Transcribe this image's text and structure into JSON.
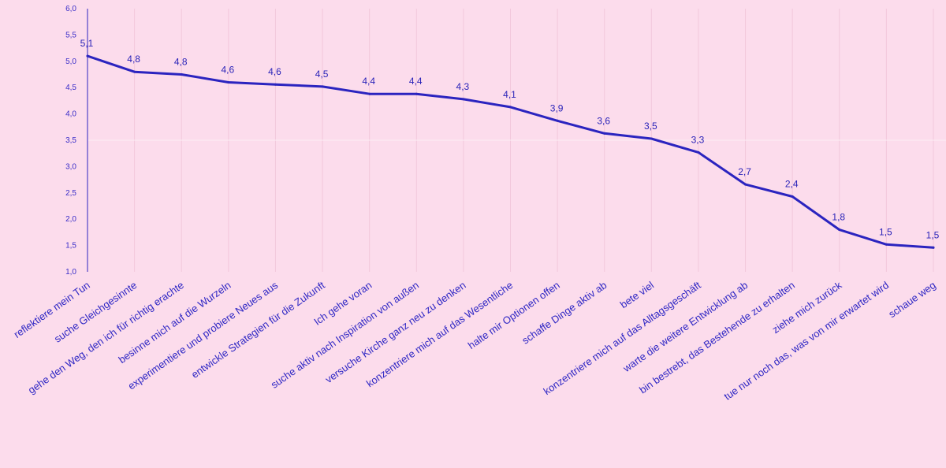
{
  "chart_data": {
    "type": "line",
    "title": "",
    "xlabel": "",
    "ylabel": "",
    "ylim": [
      1.0,
      6.0
    ],
    "yticks": [
      "1,0",
      "1,5",
      "2,0",
      "2,5",
      "3,0",
      "3,5",
      "4,0",
      "4,5",
      "5,0",
      "5,5",
      "6,0"
    ],
    "grid": "vertical",
    "colors": {
      "line": "#2b24bf",
      "background": "#fcdcec",
      "grid": "#f2c8dc"
    },
    "categories": [
      "reflektiere mein Tun",
      "suche Gleichgesinnte",
      "gehe den Weg, den ich für richtig erachte",
      "besinne mich auf die Wurzeln",
      "experimentiere und probiere Neues aus",
      "entwickle Strategien für die Zukunft",
      "Ich gehe voran",
      "suche aktiv nach Inspiration von außen",
      "versuche Kirche ganz neu zu denken",
      "konzentriere mich auf das Wesentliche",
      "halte mir Optionen offen",
      "schaffe Dinge aktiv ab",
      "bete viel",
      "konzentriere mich auf das Alltagsgeschäft",
      "warte die weitere Entwicklung ab",
      "bin bestrebt, das Bestehende zu erhalten",
      "ziehe mich zurück",
      "tue nur noch das, was von mir erwartet wird",
      "schaue weg"
    ],
    "values": [
      5.1,
      4.8,
      4.75,
      4.6,
      4.56,
      4.52,
      4.38,
      4.38,
      4.28,
      4.13,
      3.87,
      3.63,
      3.53,
      3.27,
      2.66,
      2.43,
      1.8,
      1.52,
      1.46
    ],
    "data_labels": [
      "5,1",
      "4,8",
      "4,8",
      "4,6",
      "4,6",
      "4,5",
      "4,4",
      "4,4",
      "4,3",
      "4,1",
      "3,9",
      "3,6",
      "3,5",
      "3,3",
      "2,7",
      "2,4",
      "1,8",
      "1,5",
      "1,5"
    ]
  }
}
